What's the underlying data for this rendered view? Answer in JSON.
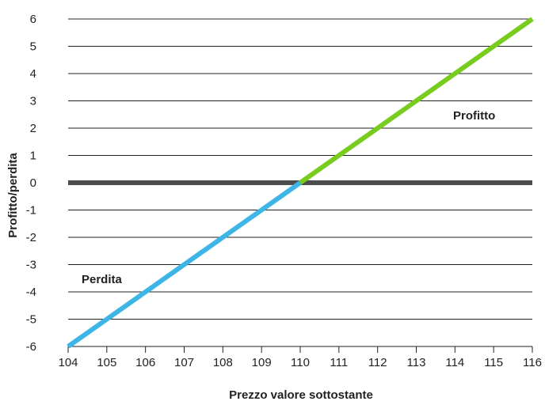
{
  "chart_data": {
    "type": "line",
    "title": "",
    "xlabel": "Prezzo valore sottostante",
    "ylabel": "Profitto/perdita",
    "xlim": [
      104,
      116
    ],
    "ylim": [
      -6,
      6
    ],
    "x_ticks": [
      104,
      105,
      106,
      107,
      108,
      109,
      110,
      111,
      112,
      113,
      114,
      115,
      116
    ],
    "y_ticks": [
      6,
      5,
      4,
      3,
      2,
      1,
      0,
      -1,
      -2,
      -3,
      -4,
      -5,
      -6
    ],
    "grid": "horizontal",
    "zero_line": true,
    "series": [
      {
        "label": "Perdita",
        "color": "#3db5e6",
        "x": [
          104,
          110
        ],
        "y": [
          -6,
          0
        ]
      },
      {
        "label": "Profitto",
        "color": "#77cc1e",
        "x": [
          110,
          116
        ],
        "y": [
          0,
          6
        ]
      }
    ],
    "colors": {
      "zero_line": "#4d4d4d",
      "grid": "#222222"
    }
  }
}
